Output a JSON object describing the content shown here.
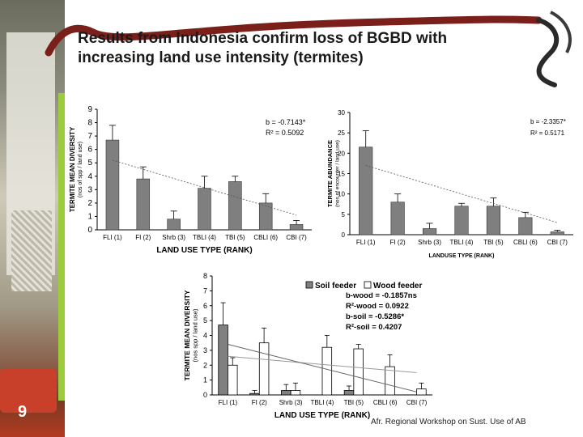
{
  "slide": {
    "title_line1": "Results from Indonesia confirm loss of BGBD with",
    "title_line2": "increasing land use intensity (termites)",
    "slide_number": "9",
    "footer": "Afr. Regional Workshop on Sust. Use of AB"
  },
  "chart_data": [
    {
      "type": "bar",
      "categories": [
        "FLI (1)",
        "FI (2)",
        "Shrb (3)",
        "TBLI (4)",
        "TBI (5)",
        "CBLI (6)",
        "CBI (7)"
      ],
      "values": [
        6.7,
        3.8,
        0.8,
        3.1,
        3.6,
        2.0,
        0.4
      ],
      "errors": [
        1.1,
        0.9,
        0.6,
        0.9,
        0.4,
        0.7,
        0.3
      ],
      "trend": [
        5.2,
        4.5,
        3.8,
        3.1,
        2.5,
        1.8,
        1.1
      ],
      "ylim": [
        0,
        9
      ],
      "yticks": [
        "0",
        "1",
        "2",
        "3",
        "4",
        "5",
        "6",
        "7",
        "8",
        "9"
      ],
      "ylabel_line1": "TERMITE MEAN DIVERSITY",
      "ylabel_line2": "(nos of spp / land use)",
      "xlabel": "LAND USE TYPE (RANK)",
      "stats": [
        "b = -0.7143*",
        "R² = 0.5092"
      ],
      "bar_color": "#7f7f7f"
    },
    {
      "type": "bar",
      "categories": [
        "FLI (1)",
        "FI (2)",
        "Shrb (3)",
        "TBLI (4)",
        "TBI (5)",
        "CBLI (6)",
        "CBI (7)"
      ],
      "values": [
        21.5,
        8.0,
        1.5,
        7.0,
        7.0,
        4.2,
        0.7
      ],
      "errors": [
        4.0,
        2.0,
        1.3,
        0.7,
        2.0,
        1.3,
        0.4
      ],
      "trend": [
        17.0,
        14.6,
        12.3,
        10.0,
        7.6,
        5.3,
        3.0
      ],
      "ylim": [
        0,
        30
      ],
      "yticks": [
        "0",
        "5",
        "10",
        "15",
        "20",
        "25",
        "30"
      ],
      "ylabel_line1": "TERMITE ABUNDANCE",
      "ylabel_line2": "(nos of encounter / land use)",
      "xlabel": "LANDUSE TYPE (RANK)",
      "stats": [
        "b = -2.3357*",
        "R² = 0.5171"
      ],
      "bar_color": "#7f7f7f"
    },
    {
      "type": "bar",
      "categories": [
        "FLI (1)",
        "FI (2)",
        "Shrb (3)",
        "TBLI (4)",
        "TBI (5)",
        "CBLI (6)",
        "CBI (7)"
      ],
      "series": [
        {
          "name": "Soil feeder",
          "values": [
            4.7,
            0.1,
            0.3,
            0.0,
            0.3,
            0.0,
            0.0
          ],
          "errors": [
            1.5,
            0.2,
            0.4,
            0.0,
            0.3,
            0.0,
            0.0
          ],
          "color": "#808080"
        },
        {
          "name": "Wood feeder",
          "values": [
            2.0,
            3.5,
            0.3,
            3.2,
            3.1,
            1.9,
            0.4
          ],
          "errors": [
            0.5,
            1.0,
            0.5,
            0.8,
            0.3,
            0.8,
            0.4
          ],
          "color": "#ffffff"
        }
      ],
      "trend_wood": [
        2.6,
        2.5,
        2.3,
        2.1,
        1.9,
        1.7,
        1.5
      ],
      "trend_soil": [
        3.4,
        2.9,
        2.3,
        1.8,
        1.3,
        0.8,
        0.2
      ],
      "ylim": [
        0,
        8
      ],
      "yticks": [
        "0",
        "1",
        "2",
        "3",
        "4",
        "5",
        "6",
        "7",
        "8"
      ],
      "ylabel_line1": "TERMITE MEAN DIVERSITY",
      "ylabel_line2": "(nos spp / land use)",
      "xlabel": "LAND USE TYPE (RANK)",
      "stats": [
        "b-wood = -0.1857ns",
        "R²-wood = 0.0922",
        "b-soil = -0.5286*",
        "R²-soil = 0.4207"
      ]
    }
  ]
}
